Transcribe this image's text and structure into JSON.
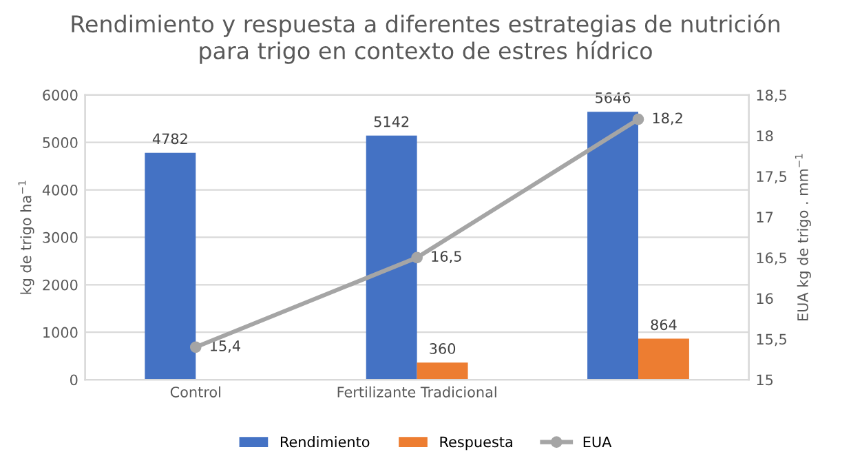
{
  "chart_data": {
    "type": "bar",
    "title": "Rendimiento y respuesta a diferentes estrategias de nutrición\npara trigo en contexto de estres hídrico",
    "categories": [
      "Control",
      "Fertilizante Tradicional",
      null
    ],
    "ylabel": "kg de trigo ha$^{−1}$",
    "y2label": "EUA kg de trigo . mm$^{−1}$",
    "ylim": [
      0,
      6000
    ],
    "yticks": [
      0,
      1000,
      2000,
      3000,
      4000,
      5000,
      6000
    ],
    "y2lim": [
      15,
      18.5
    ],
    "y2ticks": [
      {
        "value": 15,
        "label": "15"
      },
      {
        "value": 15.5,
        "label": "15,5"
      },
      {
        "value": 16,
        "label": "16"
      },
      {
        "value": 16.5,
        "label": "16,5"
      },
      {
        "value": 17,
        "label": "17"
      },
      {
        "value": 17.5,
        "label": "17,5"
      },
      {
        "value": 18,
        "label": "18"
      },
      {
        "value": 18.5,
        "label": "18,5"
      }
    ],
    "series": [
      {
        "name": "Rendimiento",
        "color": "#4472c4",
        "values": [
          4782,
          5142,
          5646
        ],
        "value_labels": [
          "4782",
          "5142",
          "5646"
        ]
      },
      {
        "name": "Respuesta",
        "color": "#ed7d31",
        "values": [
          null,
          360,
          864
        ],
        "value_labels": [
          null,
          "360",
          "864"
        ]
      },
      {
        "name": "EUA",
        "type": "line",
        "axis": "y2",
        "color": "#a5a5a5",
        "marker": "circle",
        "values": [
          15.4,
          16.5,
          18.2
        ],
        "value_labels": [
          "15,4",
          "16,5",
          "18,2"
        ]
      }
    ],
    "grid": "y",
    "legend": "bottom"
  }
}
